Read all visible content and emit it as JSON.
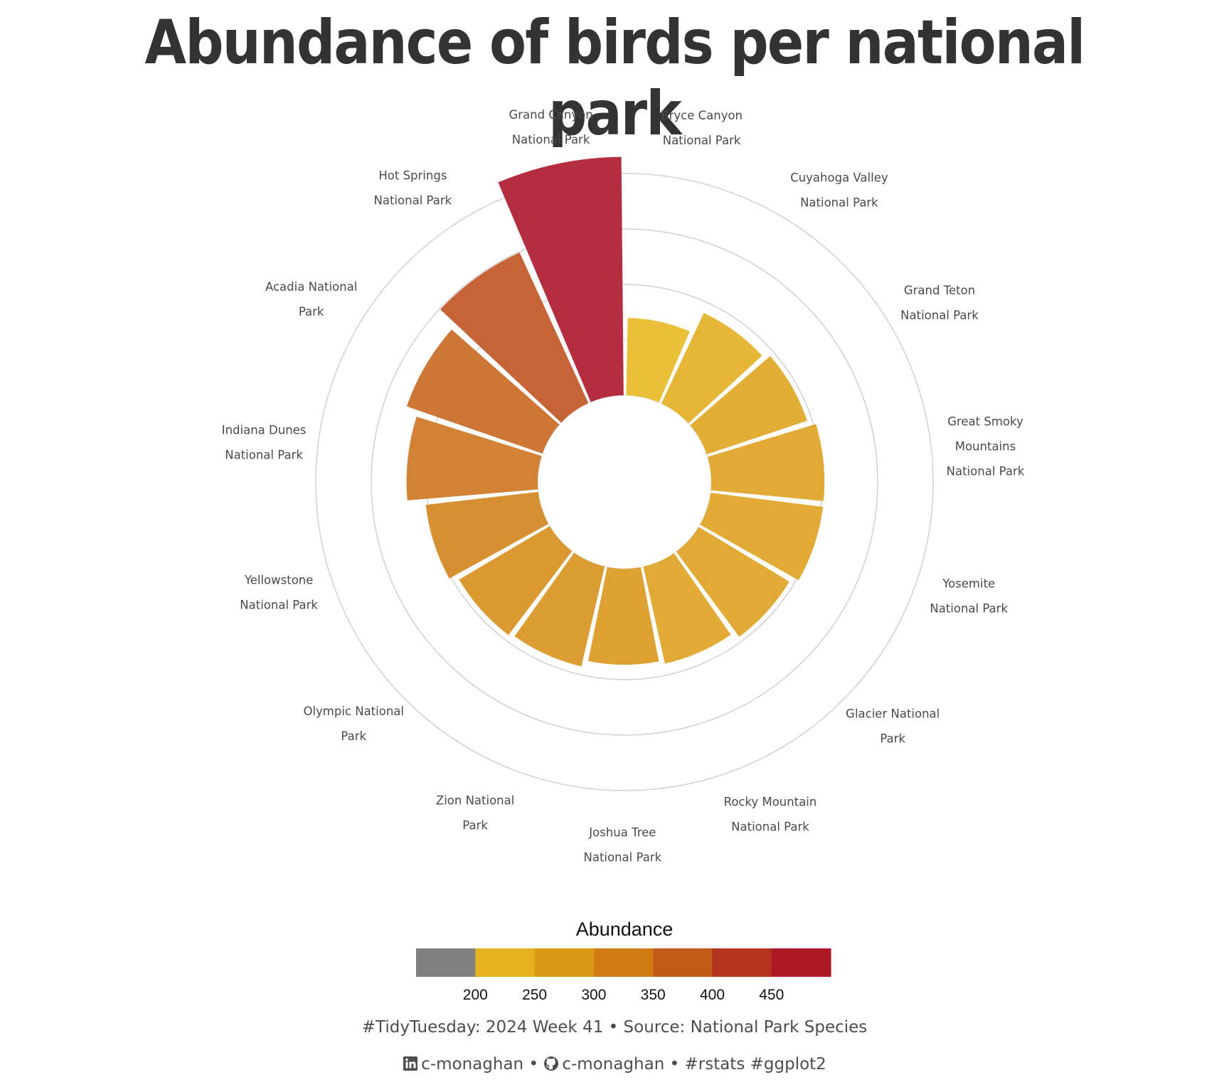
{
  "title": "Abundance of birds per national park",
  "caption": "#TidyTuesday: 2024 Week 41 • Source: National Park Species",
  "credits": {
    "linkedin": "c-monaghan",
    "github": "c-monaghan",
    "sep": "•",
    "tags": "#rstats #ggplot2"
  },
  "chart_data": {
    "type": "bar",
    "coord": "polar",
    "categories": [
      "Bryce Canyon National Park",
      "Cuyahoga Valley National Park",
      "Grand Teton National Park",
      "Great Smoky Mountains National Park",
      "Yosemite National Park",
      "Glacier National Park",
      "Rocky Mountain National Park",
      "Joshua Tree National Park",
      "Zion National Park",
      "Olympic National Park",
      "Yellowstone National Park",
      "Indiana Dunes National Park",
      "Acadia National Park",
      "Hot Springs National Park",
      "Grand Canyon National Park"
    ],
    "label_lines": [
      [
        "Bryce Canyon",
        "National Park"
      ],
      [
        "Cuyahoga Valley",
        "National Park"
      ],
      [
        "Grand Teton",
        "National Park"
      ],
      [
        "Great Smoky",
        "Mountains",
        "National Park"
      ],
      [
        "Yosemite",
        "National Park"
      ],
      [
        "Glacier National",
        "Park"
      ],
      [
        "Rocky Mountain",
        "National Park"
      ],
      [
        "Joshua Tree",
        "National Park"
      ],
      [
        "Zion National",
        "Park"
      ],
      [
        "Olympic National",
        "Park"
      ],
      [
        "Yellowstone",
        "National Park"
      ],
      [
        "Indiana Dunes",
        "National Park"
      ],
      [
        "Acadia National",
        "Park"
      ],
      [
        "Hot Springs",
        "National Park"
      ],
      [
        "Grand Canyon",
        "National Park"
      ]
    ],
    "values": [
      222,
      256,
      265,
      276,
      276,
      265,
      255,
      250,
      260,
      264,
      276,
      303,
      322,
      355,
      465
    ],
    "colors": [
      "#e9be33",
      "#e5b52f",
      "#e2ab2f",
      "#e0a72f",
      "#e0a82f",
      "#e0a72f",
      "#e0a830",
      "#dc9e2b",
      "#da9a2a",
      "#d9962a",
      "#d58c2b",
      "#d17e2d",
      "#cb722f",
      "#c55f31",
      "#b3273a"
    ],
    "legend": {
      "title": "Abundance",
      "breaks": [
        200,
        250,
        300,
        350,
        400,
        450
      ],
      "colors": [
        "#808080",
        "#e5b320",
        "#da9a16",
        "#d07c10",
        "#c25a1a",
        "#b4331f",
        "#ae1927"
      ]
    }
  }
}
